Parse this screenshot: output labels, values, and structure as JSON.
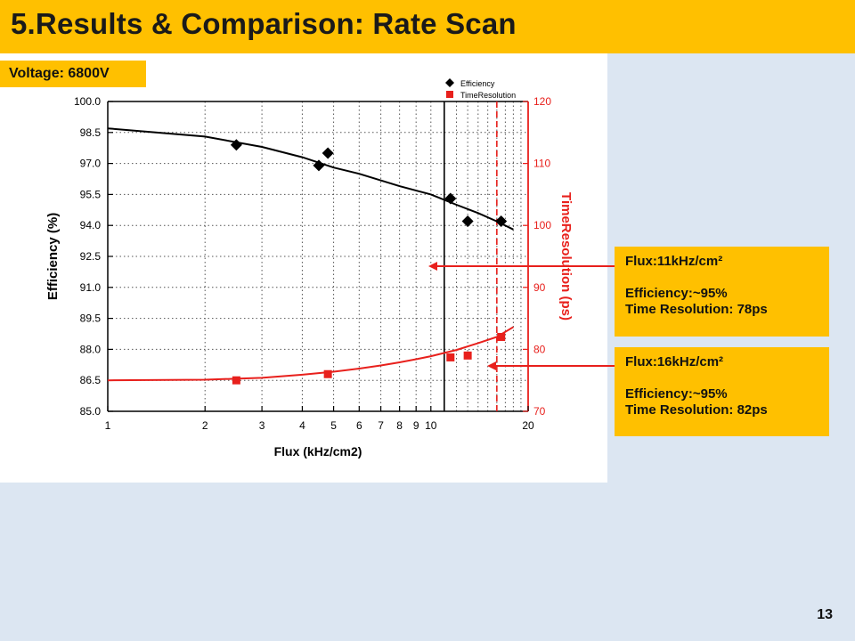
{
  "slide": {
    "title": "5.Results & Comparison: Rate Scan",
    "page_number": "13",
    "voltage_label": "Voltage: 6800V"
  },
  "callouts": [
    {
      "flux": "Flux:11kHz/cm²",
      "efficiency": "Efficiency:~95%",
      "time_resolution": "Time Resolution: 78ps"
    },
    {
      "flux": "Flux:16kHz/cm²",
      "efficiency": "Efficiency:~95%",
      "time_resolution": "Time Resolution: 82ps"
    }
  ],
  "colors": {
    "accent": "#ffc000",
    "efficiency": "#000000",
    "time_resolution": "#e8201c",
    "background": "#dce6f2"
  },
  "chart_data": {
    "type": "scatter",
    "xlabel": "Flux (kHz/cm2)",
    "ylabel": "Efficiency (%)",
    "y2label": "TimeResolution (ps)",
    "x_scale": "log",
    "xlim": [
      1,
      20
    ],
    "ylim": [
      85.0,
      100.0
    ],
    "y2lim": [
      70,
      120
    ],
    "x_ticks": [
      1,
      2,
      3,
      4,
      5,
      6,
      7,
      8,
      9,
      10,
      20
    ],
    "y_ticks": [
      85.0,
      86.5,
      88.0,
      89.5,
      91.0,
      92.5,
      94.0,
      95.5,
      97.0,
      98.5,
      100.0
    ],
    "y2_ticks": [
      70,
      80,
      90,
      100,
      110,
      120
    ],
    "grid": true,
    "legend_position": "top-right",
    "series": [
      {
        "name": "Efficiency",
        "axis": "left",
        "marker": "diamond",
        "color": "#000000",
        "points": [
          [
            2.5,
            97.9
          ],
          [
            4.5,
            96.9
          ],
          [
            4.8,
            97.5
          ],
          [
            11.5,
            95.3
          ],
          [
            13.0,
            94.2
          ],
          [
            16.5,
            94.2
          ]
        ]
      },
      {
        "name": "TimeResolution",
        "axis": "right",
        "marker": "square",
        "color": "#e8201c",
        "points": [
          [
            2.5,
            75.0
          ],
          [
            4.8,
            76.0
          ],
          [
            11.5,
            78.7
          ],
          [
            13.0,
            79.0
          ],
          [
            16.5,
            82.0
          ]
        ]
      }
    ],
    "fits": [
      {
        "series": "Efficiency",
        "axis": "left",
        "color": "#000000",
        "points": [
          [
            1,
            98.7
          ],
          [
            2,
            98.3
          ],
          [
            3,
            97.8
          ],
          [
            4,
            97.3
          ],
          [
            5,
            96.8
          ],
          [
            6,
            96.5
          ],
          [
            8,
            95.9
          ],
          [
            10,
            95.5
          ],
          [
            12,
            95.0
          ],
          [
            14,
            94.6
          ],
          [
            16,
            94.2
          ],
          [
            18,
            93.8
          ]
        ]
      },
      {
        "series": "TimeResolution",
        "axis": "right",
        "color": "#e8201c",
        "points": [
          [
            1,
            75.0
          ],
          [
            2,
            75.1
          ],
          [
            3,
            75.4
          ],
          [
            4,
            75.9
          ],
          [
            5,
            76.4
          ],
          [
            6,
            76.9
          ],
          [
            7,
            77.4
          ],
          [
            8,
            77.9
          ],
          [
            9,
            78.4
          ],
          [
            10,
            78.9
          ],
          [
            12,
            79.9
          ],
          [
            14,
            81.0
          ],
          [
            16,
            82.0
          ],
          [
            18,
            83.6
          ]
        ]
      }
    ],
    "markers": [
      {
        "x": 11,
        "style": "solid",
        "color": "#000000"
      },
      {
        "x": 16,
        "style": "dashed",
        "color": "#e8201c"
      }
    ]
  }
}
